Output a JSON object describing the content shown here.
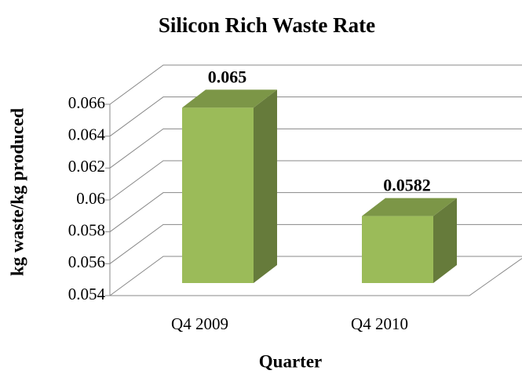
{
  "chart_data": {
    "type": "bar",
    "title": "Silicon Rich Waste Rate",
    "x_label": "Quarter",
    "y_label": "kg waste/kg produced",
    "categories": [
      "Q4 2009",
      "Q4 2010"
    ],
    "values": [
      0.065,
      0.0582
    ],
    "color": "#9bbb59",
    "ylim": [
      0.054,
      0.066
    ],
    "yticks": [
      0.054,
      0.056,
      0.058,
      0.06,
      0.062,
      0.064,
      0.066
    ],
    "grid": true
  }
}
